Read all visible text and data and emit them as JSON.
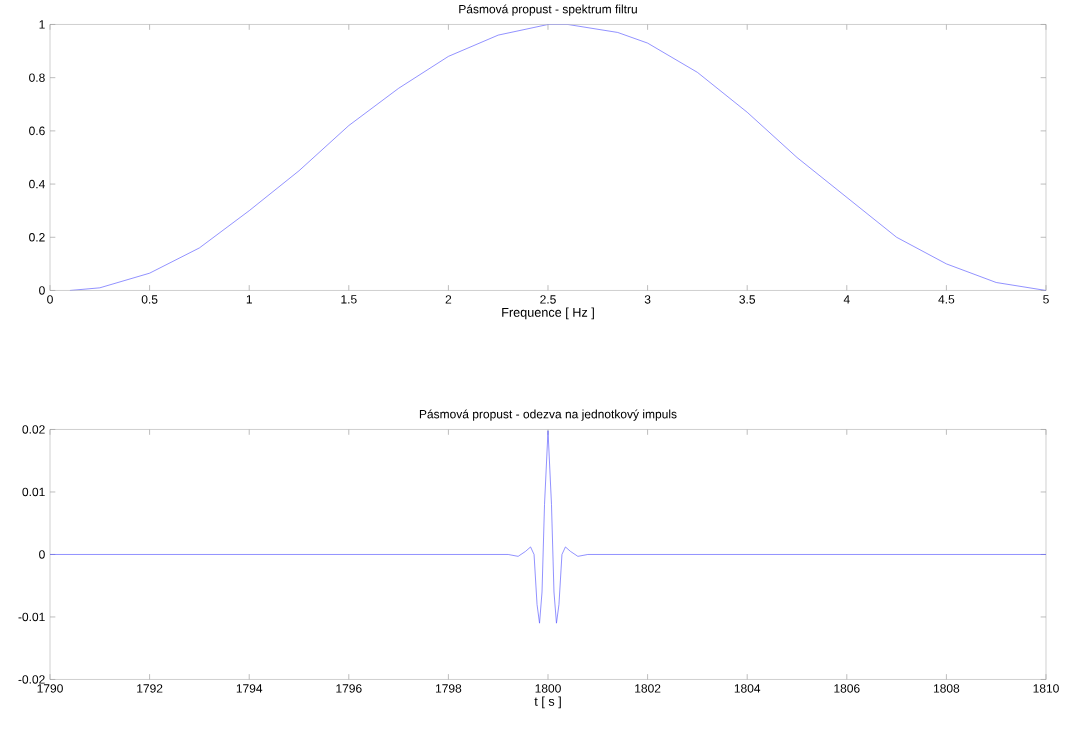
{
  "chart_data": [
    {
      "type": "line",
      "title": "Pásmová propust - spektrum filtru",
      "xlabel": "Frequence [ Hz ]",
      "x": [
        0.1,
        0.25,
        0.5,
        0.75,
        1,
        1.25,
        1.5,
        1.75,
        2,
        2.25,
        2.5,
        2.6,
        2.85,
        3,
        3.25,
        3.5,
        3.75,
        4,
        4.25,
        4.5,
        4.75,
        5
      ],
      "series": [
        {
          "color": "#5a5aff",
          "values": [
            0,
            0.01,
            0.065,
            0.16,
            0.3,
            0.45,
            0.62,
            0.76,
            0.88,
            0.96,
            1.0,
            1.0,
            0.97,
            0.93,
            0.82,
            0.67,
            0.5,
            0.35,
            0.2,
            0.1,
            0.03,
            0
          ]
        }
      ],
      "xlim": [
        0,
        5
      ],
      "ylim": [
        0,
        1
      ],
      "xticks": [
        0,
        0.5,
        1,
        1.5,
        2,
        2.5,
        3,
        3.5,
        4,
        4.5,
        5
      ],
      "yticks": [
        0,
        0.2,
        0.4,
        0.6,
        0.8,
        1
      ],
      "grid": false
    },
    {
      "type": "line",
      "title": "Pásmová propust - odezva na jednotkový impuls",
      "xlabel": "t [ s ]",
      "x": [
        1790,
        1799.2,
        1799.4,
        1799.55,
        1799.65,
        1799.72,
        1799.78,
        1799.83,
        1799.88,
        1799.93,
        1800,
        1800.07,
        1800.12,
        1800.17,
        1800.22,
        1800.28,
        1800.35,
        1800.45,
        1800.6,
        1800.8,
        1810
      ],
      "series": [
        {
          "color": "#5a5aff",
          "values": [
            0,
            0,
            -0.0003,
            0.0005,
            0.0012,
            0,
            -0.008,
            -0.011,
            -0.006,
            0.008,
            0.0198,
            0.008,
            -0.006,
            -0.011,
            -0.008,
            0,
            0.0012,
            0.0005,
            -0.0003,
            0,
            0
          ]
        }
      ],
      "xlim": [
        1790,
        1810
      ],
      "ylim": [
        -0.02,
        0.02
      ],
      "xticks": [
        1790,
        1792,
        1794,
        1796,
        1798,
        1800,
        1802,
        1804,
        1806,
        1808,
        1810
      ],
      "yticks": [
        -0.02,
        -0.01,
        0,
        0.01,
        0.02
      ],
      "grid": false
    }
  ]
}
